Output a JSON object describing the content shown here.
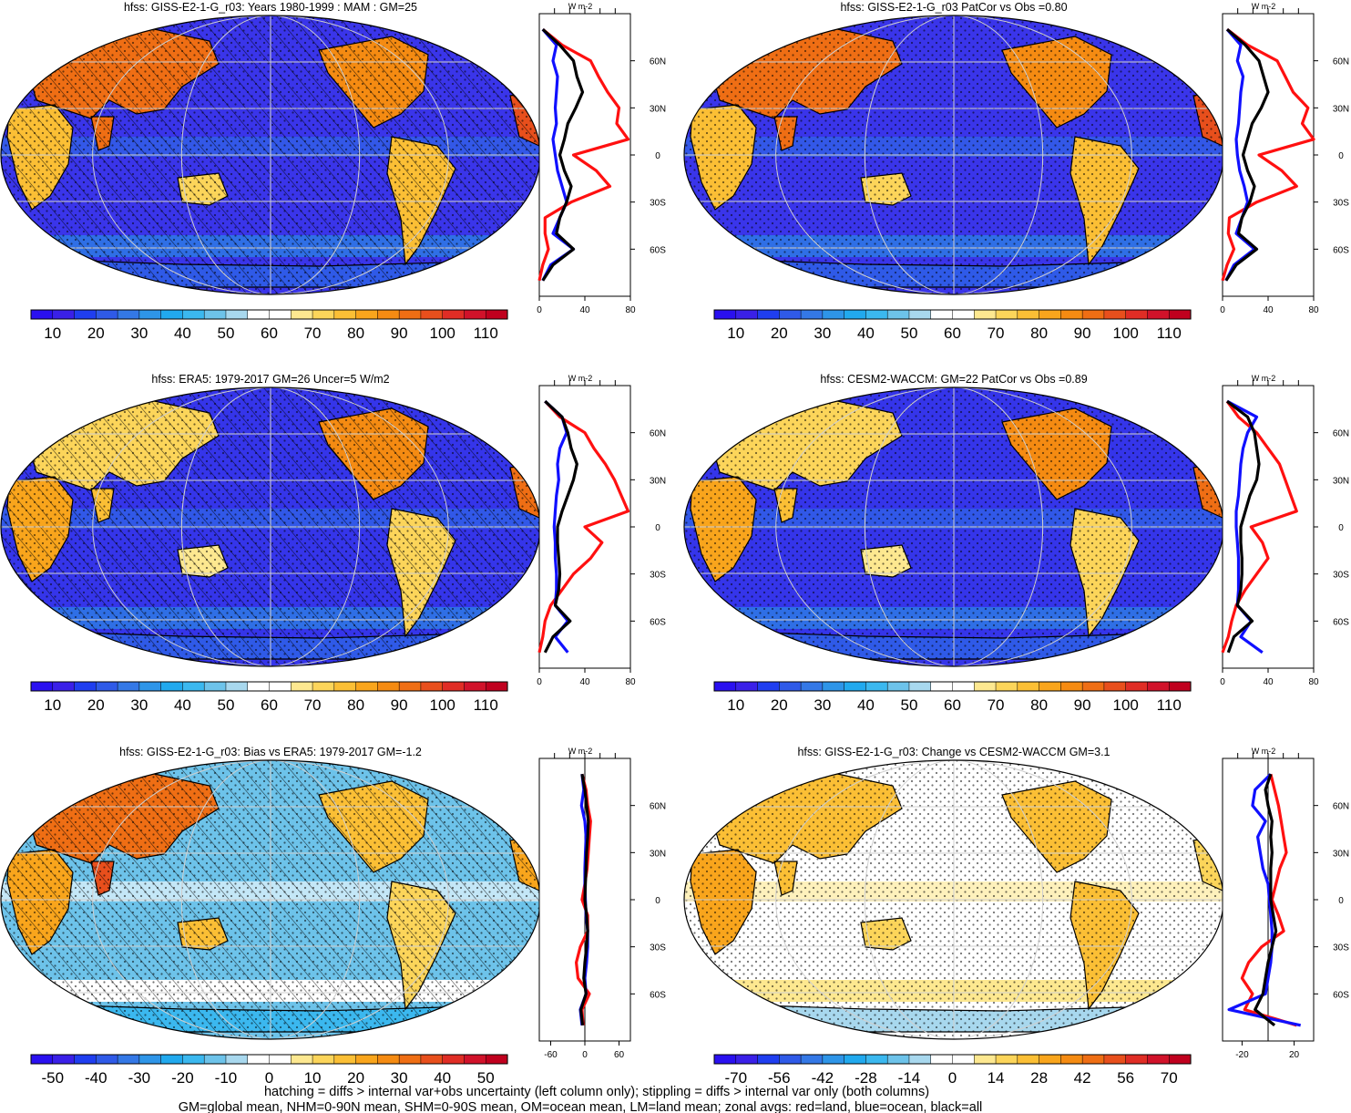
{
  "panels": [
    {
      "title": "hfss: GISS-E2-1-G_r03: Years 1980-1999 : MAM : GM=25",
      "variant": "mean_model",
      "hatching": true,
      "stippling": true,
      "colorbar": {
        "labels": [
          "10",
          "20",
          "30",
          "40",
          "50",
          "60",
          "70",
          "80",
          "90",
          "100",
          "110"
        ]
      },
      "zonal": {
        "unit": "W m-2",
        "xticks": [
          "0",
          "40",
          "80"
        ],
        "xlim": [
          0,
          80
        ],
        "lat_labels": [
          "60N",
          "30N",
          "0",
          "30S",
          "60S"
        ]
      }
    },
    {
      "title": "hfss: GISS-E2-1-G_r03 PatCor vs Obs =0.80",
      "variant": "mean_model",
      "hatching": false,
      "stippling": true,
      "colorbar": {
        "labels": [
          "10",
          "20",
          "30",
          "40",
          "50",
          "60",
          "70",
          "80",
          "90",
          "100",
          "110"
        ]
      },
      "zonal": {
        "unit": "W m-2",
        "xticks": [
          "0",
          "40",
          "80"
        ],
        "xlim": [
          0,
          80
        ],
        "lat_labels": [
          "60N",
          "30N",
          "0",
          "30S",
          "60S"
        ]
      }
    },
    {
      "title": "hfss: ERA5: 1979-2017 GM=26 Uncer=5 W/m2",
      "variant": "mean_obs",
      "hatching": true,
      "stippling": true,
      "colorbar": {
        "labels": [
          "10",
          "20",
          "30",
          "40",
          "50",
          "60",
          "70",
          "80",
          "90",
          "100",
          "110"
        ]
      },
      "zonal": {
        "unit": "W m-2",
        "xticks": [
          "0",
          "40",
          "80"
        ],
        "xlim": [
          0,
          80
        ],
        "lat_labels": [
          "60N",
          "30N",
          "0",
          "30S",
          "60S"
        ]
      }
    },
    {
      "title": "hfss: CESM2-WACCM: GM=22 PatCor vs Obs =0.89",
      "variant": "mean_obs",
      "hatching": false,
      "stippling": true,
      "colorbar": {
        "labels": [
          "10",
          "20",
          "30",
          "40",
          "50",
          "60",
          "70",
          "80",
          "90",
          "100",
          "110"
        ]
      },
      "zonal": {
        "unit": "W m-2",
        "xticks": [
          "0",
          "40",
          "80"
        ],
        "xlim": [
          0,
          80
        ],
        "lat_labels": [
          "60N",
          "30N",
          "0",
          "30S",
          "60S"
        ]
      }
    },
    {
      "title": "hfss: GISS-E2-1-G_r03: Bias vs ERA5: 1979-2017 GM=-1.2",
      "variant": "bias",
      "hatching": true,
      "stippling": true,
      "colorbar": {
        "labels": [
          "-50",
          "-40",
          "-30",
          "-20",
          "-10",
          "0",
          "10",
          "20",
          "30",
          "40",
          "50"
        ]
      },
      "zonal": {
        "unit": "W m-2",
        "xticks": [
          "-60",
          "0",
          "60"
        ],
        "xlim": [
          -80,
          80
        ],
        "lat_labels": [
          "60N",
          "30N",
          "0",
          "30S",
          "60S"
        ]
      }
    },
    {
      "title": "hfss: GISS-E2-1-G_r03: Change vs CESM2-WACCM GM=3.1",
      "variant": "change",
      "hatching": false,
      "stippling": true,
      "colorbar": {
        "labels": [
          "-70",
          "-56",
          "-42",
          "-28",
          "-14",
          "0",
          "14",
          "28",
          "42",
          "56",
          "70"
        ]
      },
      "zonal": {
        "unit": "W m-2",
        "xticks": [
          "-20",
          "20"
        ],
        "xlim": [
          -35,
          35
        ],
        "lat_labels": [
          "60N",
          "30N",
          "0",
          "30S",
          "60S"
        ]
      }
    }
  ],
  "palettes": {
    "mean": [
      "#2a10f0",
      "#3a20e8",
      "#1f3ef0",
      "#2f5ae8",
      "#3478e6",
      "#2e95e8",
      "#21a9ee",
      "#3bb8ef",
      "#6dc3ea",
      "#a8d8ee",
      "#ffffff",
      "#ffffff",
      "#fde890",
      "#fcd55a",
      "#fbbf35",
      "#f9a51c",
      "#f58b12",
      "#ef6e14",
      "#e84f1c",
      "#e02d25",
      "#d1122a",
      "#c0001e"
    ],
    "diff": [
      "#2a10f0",
      "#3a20e8",
      "#1f3ef0",
      "#2f5ae8",
      "#3478e6",
      "#2e95e8",
      "#21a9ee",
      "#3bb8ef",
      "#6dc3ea",
      "#a8d8ee",
      "#ffffff",
      "#ffffff",
      "#fde890",
      "#fcd55a",
      "#fbbf35",
      "#f9a51c",
      "#f58b12",
      "#ef6e14",
      "#e84f1c",
      "#e02d25",
      "#d1122a",
      "#c0001e"
    ],
    "map_colors": {
      "ocean_mean": "#3a35ea",
      "ocean_mid": "#2f6fe6",
      "land_hot": "#ef6e14",
      "land_warm": "#fcd55a",
      "ice": "#21a9ee",
      "diff_neutral": "#ffffff",
      "diff_pos": "#fbbf35",
      "diff_neg": "#6dc3ea",
      "diff_strong": "#e02d25"
    }
  },
  "chart_data": [
    {
      "type": "line",
      "title": "hfss: GISS-E2-1-G_r03: Years 1980-1999 : MAM : GM=25",
      "xlabel": "W m-2",
      "xlim": [
        0,
        80
      ],
      "ylim": [
        -90,
        90
      ],
      "y": [
        80,
        70,
        60,
        50,
        40,
        30,
        20,
        10,
        0,
        -10,
        -20,
        -30,
        -40,
        -50,
        -60,
        -70,
        -80
      ],
      "series": [
        {
          "color": "red",
          "values": [
            3,
            20,
            45,
            52,
            60,
            70,
            68,
            78,
            30,
            50,
            62,
            28,
            5,
            5,
            8,
            3,
            0
          ]
        },
        {
          "color": "blue",
          "values": [
            3,
            15,
            12,
            16,
            15,
            14,
            15,
            12,
            14,
            16,
            20,
            24,
            18,
            12,
            30,
            10,
            3
          ]
        },
        {
          "color": "black",
          "values": [
            3,
            18,
            30,
            33,
            38,
            32,
            25,
            22,
            18,
            22,
            28,
            24,
            18,
            15,
            30,
            12,
            3
          ]
        }
      ]
    },
    {
      "type": "line",
      "title": "hfss: GISS-E2-1-G_r03 PatCor vs Obs =0.80",
      "xlabel": "W m-2",
      "xlim": [
        0,
        80
      ],
      "ylim": [
        -90,
        90
      ],
      "y": [
        80,
        70,
        60,
        50,
        40,
        30,
        20,
        10,
        0,
        -10,
        -20,
        -30,
        -40,
        -50,
        -60,
        -70,
        -80
      ],
      "series": [
        {
          "color": "red",
          "values": [
            4,
            22,
            48,
            55,
            62,
            75,
            70,
            80,
            32,
            52,
            65,
            30,
            6,
            5,
            10,
            4,
            0
          ]
        },
        {
          "color": "blue",
          "values": [
            4,
            16,
            13,
            18,
            16,
            15,
            14,
            12,
            13,
            15,
            19,
            22,
            17,
            12,
            28,
            10,
            3
          ]
        },
        {
          "color": "black",
          "values": [
            4,
            20,
            32,
            36,
            40,
            34,
            26,
            22,
            18,
            22,
            28,
            24,
            17,
            14,
            30,
            12,
            3
          ]
        }
      ]
    },
    {
      "type": "line",
      "title": "hfss: ERA5: 1979-2017 GM=26 Uncer=5 W/m2",
      "xlabel": "W m-2",
      "xlim": [
        0,
        80
      ],
      "ylim": [
        -90,
        90
      ],
      "y": [
        80,
        70,
        60,
        50,
        40,
        30,
        20,
        10,
        0,
        -10,
        -20,
        -30,
        -40,
        -50,
        -60,
        -70,
        -80
      ],
      "series": [
        {
          "color": "red",
          "values": [
            5,
            18,
            40,
            48,
            58,
            66,
            72,
            78,
            40,
            55,
            45,
            30,
            20,
            10,
            5,
            3,
            0
          ]
        },
        {
          "color": "blue",
          "values": [
            5,
            20,
            24,
            18,
            16,
            17,
            15,
            14,
            13,
            14,
            14,
            15,
            15,
            14,
            25,
            14,
            25
          ]
        },
        {
          "color": "black",
          "values": [
            5,
            20,
            25,
            28,
            33,
            30,
            25,
            20,
            16,
            16,
            17,
            18,
            17,
            14,
            27,
            12,
            5
          ]
        }
      ]
    },
    {
      "type": "line",
      "title": "hfss: CESM2-WACCM: GM=22 PatCor vs Obs =0.89",
      "xlabel": "W m-2",
      "xlim": [
        0,
        80
      ],
      "ylim": [
        -90,
        90
      ],
      "y": [
        80,
        70,
        60,
        50,
        40,
        30,
        20,
        10,
        0,
        -10,
        -20,
        -30,
        -40,
        -50,
        -60,
        -70,
        -80
      ],
      "series": [
        {
          "color": "red",
          "values": [
            4,
            14,
            30,
            40,
            50,
            55,
            60,
            65,
            25,
            35,
            40,
            30,
            20,
            12,
            8,
            5,
            0
          ]
        },
        {
          "color": "blue",
          "values": [
            4,
            30,
            22,
            18,
            16,
            15,
            14,
            12,
            12,
            13,
            14,
            14,
            14,
            13,
            25,
            16,
            35
          ]
        },
        {
          "color": "black",
          "values": [
            4,
            22,
            28,
            30,
            32,
            30,
            24,
            20,
            16,
            16,
            17,
            17,
            16,
            13,
            26,
            10,
            5
          ]
        }
      ]
    },
    {
      "type": "line",
      "title": "hfss: GISS-E2-1-G_r03: Bias vs ERA5: 1979-2017 GM=-1.2",
      "xlabel": "W m-2",
      "xlim": [
        -80,
        80
      ],
      "ylim": [
        -90,
        90
      ],
      "y": [
        80,
        70,
        60,
        50,
        40,
        30,
        20,
        10,
        0,
        -10,
        -20,
        -30,
        -40,
        -50,
        -60,
        -70,
        -80
      ],
      "series": [
        {
          "color": "red",
          "values": [
            -5,
            2,
            5,
            10,
            8,
            6,
            4,
            0,
            -5,
            5,
            5,
            -8,
            -15,
            -12,
            8,
            -5,
            -3
          ]
        },
        {
          "color": "blue",
          "values": [
            -5,
            -2,
            -6,
            0,
            2,
            1,
            0,
            0,
            1,
            2,
            5,
            5,
            3,
            0,
            2,
            -8,
            -5
          ]
        },
        {
          "color": "black",
          "values": [
            -5,
            0,
            3,
            6,
            5,
            3,
            2,
            1,
            0,
            3,
            5,
            3,
            0,
            -2,
            2,
            -7,
            -4
          ]
        }
      ]
    },
    {
      "type": "line",
      "title": "hfss: GISS-E2-1-G_r03: Change vs CESM2-WACCM GM=3.1",
      "xlabel": "W m-2",
      "xlim": [
        -35,
        35
      ],
      "ylim": [
        -90,
        90
      ],
      "y": [
        80,
        70,
        60,
        50,
        40,
        30,
        20,
        10,
        0,
        -10,
        -20,
        -30,
        -40,
        -50,
        -60,
        -70,
        -80
      ],
      "series": [
        {
          "color": "red",
          "values": [
            2,
            5,
            8,
            10,
            12,
            14,
            9,
            6,
            3,
            8,
            12,
            -5,
            -15,
            -20,
            -12,
            -18,
            22
          ]
        },
        {
          "color": "blue",
          "values": [
            2,
            -10,
            -12,
            -2,
            -8,
            -6,
            -4,
            0,
            1,
            2,
            3,
            3,
            2,
            0,
            -2,
            -30,
            25
          ]
        },
        {
          "color": "black",
          "values": [
            2,
            -2,
            0,
            3,
            2,
            3,
            2,
            2,
            2,
            4,
            6,
            3,
            0,
            -2,
            -4,
            -10,
            5
          ]
        }
      ]
    }
  ],
  "footer": {
    "line1": "hatching = diffs > internal var+obs uncertainty (left column only); stippling = diffs > internal var only (both columns)",
    "line2": "GM=global mean, NHM=0-90N mean, SHM=0-90S mean, OM=ocean mean, LM=land mean; zonal avgs: red=land, blue=ocean, black=all"
  }
}
